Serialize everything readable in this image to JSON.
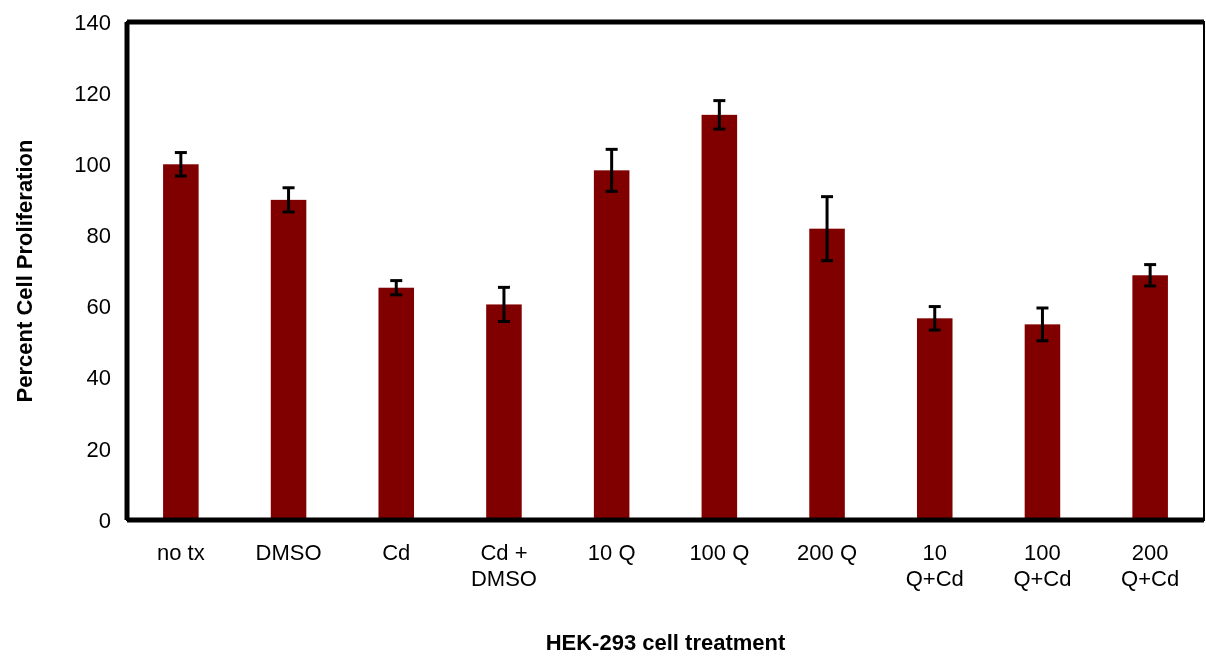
{
  "chart_data": {
    "type": "bar",
    "xlabel": "HEK-293 cell treatment",
    "ylabel": "Percent Cell Proliferation",
    "categories": [
      "no tx",
      "DMSO",
      "Cd",
      "Cd + DMSO",
      "10 Q",
      "100 Q",
      "200 Q",
      "10 Q+Cd",
      "100 Q+Cd",
      "200 Q+Cd"
    ],
    "values": [
      100,
      90,
      65.3,
      60.6,
      98.3,
      113.9,
      81.9,
      56.7,
      55,
      68.8
    ],
    "errors": [
      3.3,
      3.4,
      2,
      4.8,
      5.9,
      4,
      9,
      3.3,
      4.6,
      3
    ],
    "color": "#800000",
    "ylim": [
      0,
      140
    ],
    "yticks": [
      0,
      20,
      40,
      60,
      80,
      100,
      120,
      140
    ],
    "grid": false
  }
}
